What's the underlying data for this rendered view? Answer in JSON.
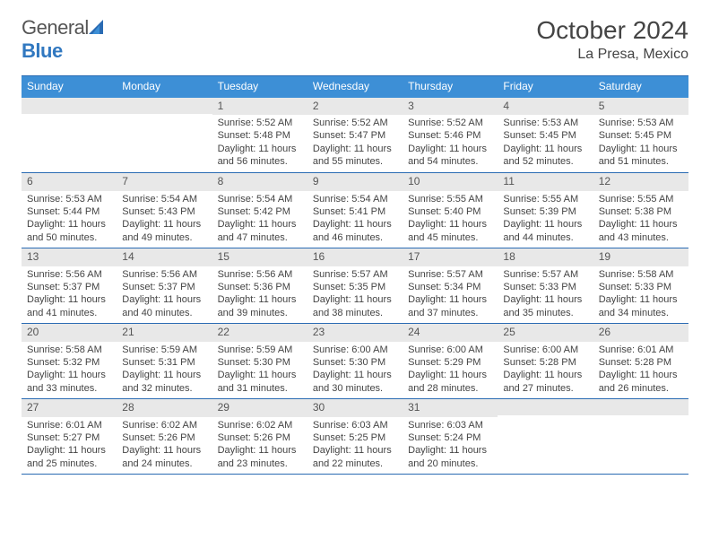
{
  "logo": {
    "word1": "General",
    "word2": "Blue"
  },
  "header": {
    "month_year": "October 2024",
    "location": "La Presa, Mexico"
  },
  "colors": {
    "header_bg": "#3d8fd6",
    "header_text": "#ffffff",
    "rule": "#2a6bb3",
    "daynum_bg": "#e8e8e8",
    "text": "#444444",
    "logo_gray": "#555555",
    "logo_blue": "#3178c0"
  },
  "day_labels": [
    "Sunday",
    "Monday",
    "Tuesday",
    "Wednesday",
    "Thursday",
    "Friday",
    "Saturday"
  ],
  "weeks": [
    [
      {
        "n": "",
        "lines": []
      },
      {
        "n": "",
        "lines": []
      },
      {
        "n": "1",
        "lines": [
          "Sunrise: 5:52 AM",
          "Sunset: 5:48 PM",
          "Daylight: 11 hours",
          "and 56 minutes."
        ]
      },
      {
        "n": "2",
        "lines": [
          "Sunrise: 5:52 AM",
          "Sunset: 5:47 PM",
          "Daylight: 11 hours",
          "and 55 minutes."
        ]
      },
      {
        "n": "3",
        "lines": [
          "Sunrise: 5:52 AM",
          "Sunset: 5:46 PM",
          "Daylight: 11 hours",
          "and 54 minutes."
        ]
      },
      {
        "n": "4",
        "lines": [
          "Sunrise: 5:53 AM",
          "Sunset: 5:45 PM",
          "Daylight: 11 hours",
          "and 52 minutes."
        ]
      },
      {
        "n": "5",
        "lines": [
          "Sunrise: 5:53 AM",
          "Sunset: 5:45 PM",
          "Daylight: 11 hours",
          "and 51 minutes."
        ]
      }
    ],
    [
      {
        "n": "6",
        "lines": [
          "Sunrise: 5:53 AM",
          "Sunset: 5:44 PM",
          "Daylight: 11 hours",
          "and 50 minutes."
        ]
      },
      {
        "n": "7",
        "lines": [
          "Sunrise: 5:54 AM",
          "Sunset: 5:43 PM",
          "Daylight: 11 hours",
          "and 49 minutes."
        ]
      },
      {
        "n": "8",
        "lines": [
          "Sunrise: 5:54 AM",
          "Sunset: 5:42 PM",
          "Daylight: 11 hours",
          "and 47 minutes."
        ]
      },
      {
        "n": "9",
        "lines": [
          "Sunrise: 5:54 AM",
          "Sunset: 5:41 PM",
          "Daylight: 11 hours",
          "and 46 minutes."
        ]
      },
      {
        "n": "10",
        "lines": [
          "Sunrise: 5:55 AM",
          "Sunset: 5:40 PM",
          "Daylight: 11 hours",
          "and 45 minutes."
        ]
      },
      {
        "n": "11",
        "lines": [
          "Sunrise: 5:55 AM",
          "Sunset: 5:39 PM",
          "Daylight: 11 hours",
          "and 44 minutes."
        ]
      },
      {
        "n": "12",
        "lines": [
          "Sunrise: 5:55 AM",
          "Sunset: 5:38 PM",
          "Daylight: 11 hours",
          "and 43 minutes."
        ]
      }
    ],
    [
      {
        "n": "13",
        "lines": [
          "Sunrise: 5:56 AM",
          "Sunset: 5:37 PM",
          "Daylight: 11 hours",
          "and 41 minutes."
        ]
      },
      {
        "n": "14",
        "lines": [
          "Sunrise: 5:56 AM",
          "Sunset: 5:37 PM",
          "Daylight: 11 hours",
          "and 40 minutes."
        ]
      },
      {
        "n": "15",
        "lines": [
          "Sunrise: 5:56 AM",
          "Sunset: 5:36 PM",
          "Daylight: 11 hours",
          "and 39 minutes."
        ]
      },
      {
        "n": "16",
        "lines": [
          "Sunrise: 5:57 AM",
          "Sunset: 5:35 PM",
          "Daylight: 11 hours",
          "and 38 minutes."
        ]
      },
      {
        "n": "17",
        "lines": [
          "Sunrise: 5:57 AM",
          "Sunset: 5:34 PM",
          "Daylight: 11 hours",
          "and 37 minutes."
        ]
      },
      {
        "n": "18",
        "lines": [
          "Sunrise: 5:57 AM",
          "Sunset: 5:33 PM",
          "Daylight: 11 hours",
          "and 35 minutes."
        ]
      },
      {
        "n": "19",
        "lines": [
          "Sunrise: 5:58 AM",
          "Sunset: 5:33 PM",
          "Daylight: 11 hours",
          "and 34 minutes."
        ]
      }
    ],
    [
      {
        "n": "20",
        "lines": [
          "Sunrise: 5:58 AM",
          "Sunset: 5:32 PM",
          "Daylight: 11 hours",
          "and 33 minutes."
        ]
      },
      {
        "n": "21",
        "lines": [
          "Sunrise: 5:59 AM",
          "Sunset: 5:31 PM",
          "Daylight: 11 hours",
          "and 32 minutes."
        ]
      },
      {
        "n": "22",
        "lines": [
          "Sunrise: 5:59 AM",
          "Sunset: 5:30 PM",
          "Daylight: 11 hours",
          "and 31 minutes."
        ]
      },
      {
        "n": "23",
        "lines": [
          "Sunrise: 6:00 AM",
          "Sunset: 5:30 PM",
          "Daylight: 11 hours",
          "and 30 minutes."
        ]
      },
      {
        "n": "24",
        "lines": [
          "Sunrise: 6:00 AM",
          "Sunset: 5:29 PM",
          "Daylight: 11 hours",
          "and 28 minutes."
        ]
      },
      {
        "n": "25",
        "lines": [
          "Sunrise: 6:00 AM",
          "Sunset: 5:28 PM",
          "Daylight: 11 hours",
          "and 27 minutes."
        ]
      },
      {
        "n": "26",
        "lines": [
          "Sunrise: 6:01 AM",
          "Sunset: 5:28 PM",
          "Daylight: 11 hours",
          "and 26 minutes."
        ]
      }
    ],
    [
      {
        "n": "27",
        "lines": [
          "Sunrise: 6:01 AM",
          "Sunset: 5:27 PM",
          "Daylight: 11 hours",
          "and 25 minutes."
        ]
      },
      {
        "n": "28",
        "lines": [
          "Sunrise: 6:02 AM",
          "Sunset: 5:26 PM",
          "Daylight: 11 hours",
          "and 24 minutes."
        ]
      },
      {
        "n": "29",
        "lines": [
          "Sunrise: 6:02 AM",
          "Sunset: 5:26 PM",
          "Daylight: 11 hours",
          "and 23 minutes."
        ]
      },
      {
        "n": "30",
        "lines": [
          "Sunrise: 6:03 AM",
          "Sunset: 5:25 PM",
          "Daylight: 11 hours",
          "and 22 minutes."
        ]
      },
      {
        "n": "31",
        "lines": [
          "Sunrise: 6:03 AM",
          "Sunset: 5:24 PM",
          "Daylight: 11 hours",
          "and 20 minutes."
        ]
      },
      {
        "n": "",
        "lines": []
      },
      {
        "n": "",
        "lines": []
      }
    ]
  ]
}
